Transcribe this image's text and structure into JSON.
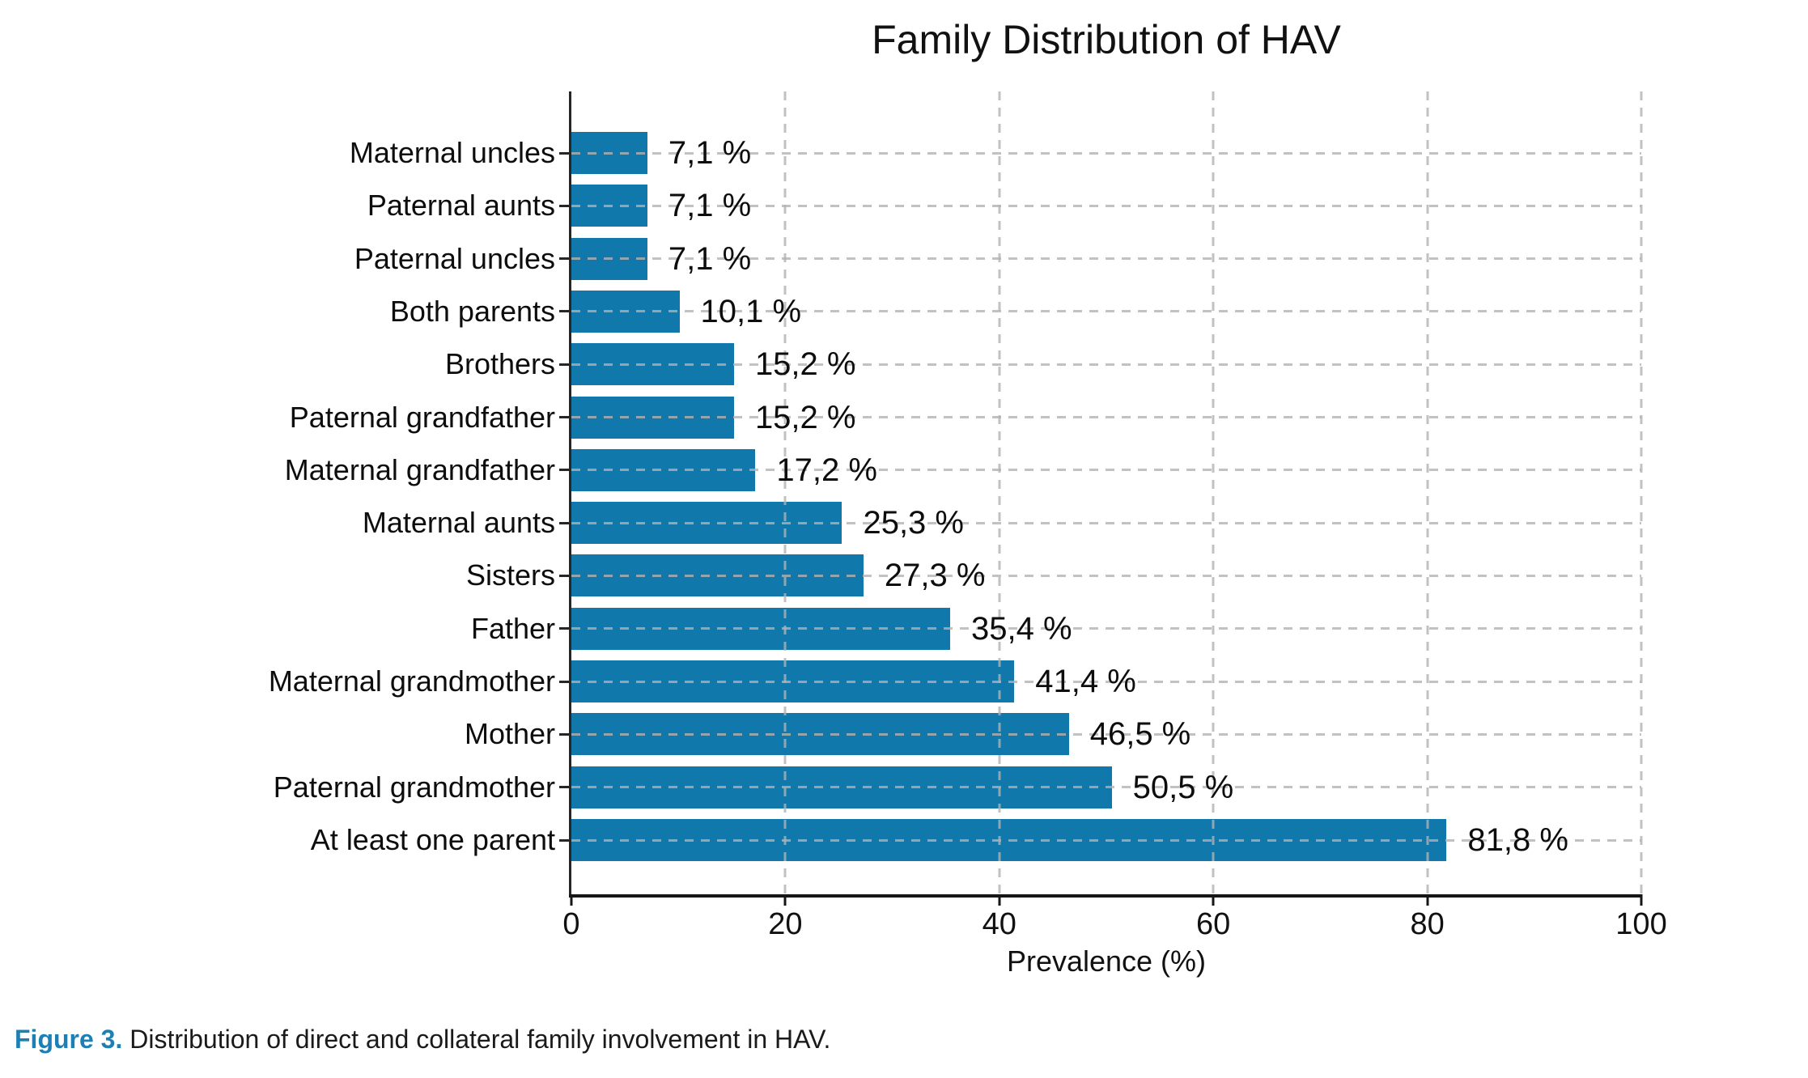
{
  "chart_data": {
    "type": "bar",
    "orientation": "horizontal",
    "title": "Family Distribution of HAV",
    "xlabel": "Prevalence (%)",
    "xlim": [
      0,
      100
    ],
    "xticks": [
      0,
      20,
      40,
      60,
      80,
      100
    ],
    "grid": true,
    "legend": false,
    "categories": [
      "Maternal uncles",
      "Paternal aunts",
      "Paternal uncles",
      "Both parents",
      "Brothers",
      "Paternal grandfather",
      "Maternal grandfather",
      "Maternal aunts",
      "Sisters",
      "Father",
      "Maternal grandmother",
      "Mother",
      "Paternal grandmother",
      "At least one parent"
    ],
    "values": [
      7.1,
      7.1,
      7.1,
      10.1,
      15.2,
      15.2,
      17.2,
      25.3,
      27.3,
      35.4,
      41.4,
      46.5,
      50.5,
      81.8
    ],
    "value_labels": [
      "7,1 %",
      "7,1 %",
      "7,1 %",
      "10,1 %",
      "15,2 %",
      "15,2 %",
      "17,2 %",
      "25,3 %",
      "27,3 %",
      "35,4 %",
      "41,4 %",
      "46,5 %",
      "50,5 %",
      "81,8 %"
    ]
  },
  "caption": {
    "prefix": "Figure 3.",
    "text": " Distribution of direct and collateral family involvement in HAV."
  },
  "colors": {
    "bar": "#1178ab",
    "axis": "#1a1a1a",
    "grid": "#c9c9c9",
    "caption_accent": "#1d80b5",
    "text": "#111111"
  }
}
